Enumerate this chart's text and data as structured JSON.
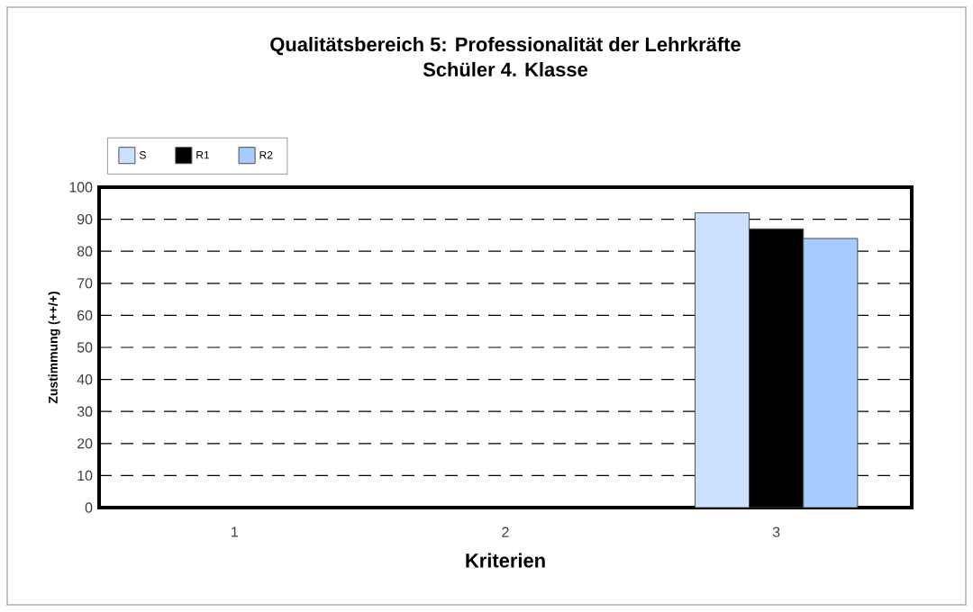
{
  "chart_data": {
    "type": "bar",
    "title": "Qualitätsbereich 5: Professionalität der Lehrkräfte",
    "subtitle": "Schüler 4. Klasse",
    "xlabel": "Kriterien",
    "ylabel": "Zustimmung (++/+)",
    "categories": [
      "1",
      "2",
      "3"
    ],
    "series": [
      {
        "name": "S",
        "color": "#cce0ff",
        "values": [
          null,
          null,
          92
        ]
      },
      {
        "name": "R1",
        "color": "#000000",
        "values": [
          null,
          null,
          87
        ]
      },
      {
        "name": "R2",
        "color": "#a6cbff",
        "values": [
          null,
          null,
          84
        ]
      }
    ],
    "ylim": [
      0,
      100
    ],
    "yticks": [
      0,
      10,
      20,
      30,
      40,
      50,
      60,
      70,
      80,
      90,
      100
    ],
    "grid": "y",
    "legend": "top left"
  }
}
